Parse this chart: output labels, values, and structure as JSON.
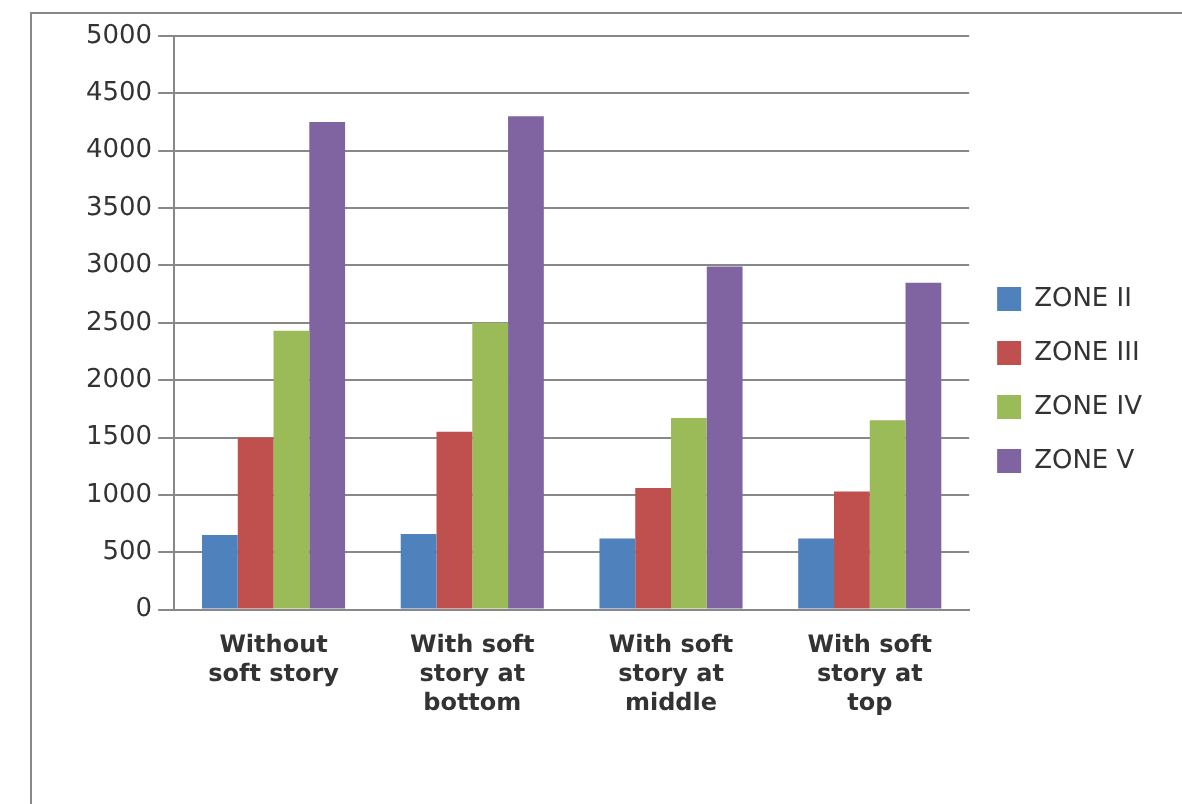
{
  "chart_data": {
    "type": "bar",
    "categories": [
      "Without soft story",
      "With soft story at bottom",
      "With soft story at middle",
      "With soft story at top"
    ],
    "series": [
      {
        "name": "ZONE II",
        "color": "#4f81bd",
        "values": [
          650,
          660,
          620,
          620
        ]
      },
      {
        "name": "ZONE III",
        "color": "#c0504d",
        "values": [
          1500,
          1550,
          1060,
          1030
        ]
      },
      {
        "name": "ZONE IV",
        "color": "#9bbb59",
        "values": [
          2430,
          2500,
          1670,
          1650
        ]
      },
      {
        "name": "ZONE V",
        "color": "#8064a2",
        "values": [
          4250,
          4300,
          2990,
          2850
        ]
      }
    ],
    "ylim": [
      0,
      5000
    ],
    "yticks": [
      0,
      500,
      1000,
      1500,
      2000,
      2500,
      3000,
      3500,
      4000,
      4500,
      5000
    ],
    "grid": "y",
    "legend": "right"
  }
}
